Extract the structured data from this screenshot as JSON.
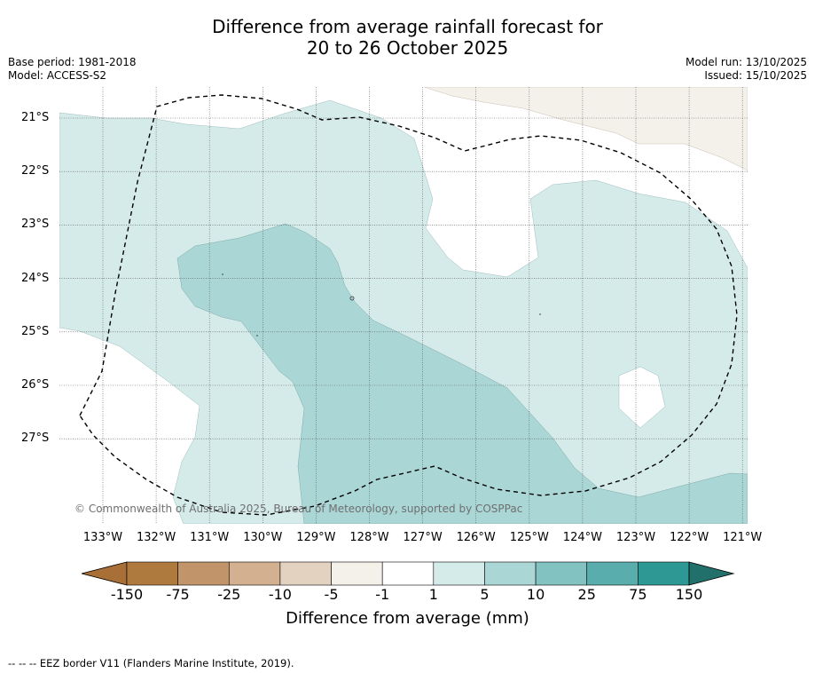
{
  "title_line1": "Difference from average rainfall forecast for",
  "title_line2": "20 to 26 October 2025",
  "base_period": "Base period: 1981-2018",
  "model": "Model: ACCESS-S2",
  "model_run": "Model run: 13/10/2025",
  "issued": "Issued: 15/10/2025",
  "lat_labels": [
    "21°S",
    "22°S",
    "23°S",
    "24°S",
    "25°S",
    "26°S",
    "27°S"
  ],
  "lon_labels": [
    "133°W",
    "132°W",
    "131°W",
    "130°W",
    "129°W",
    "128°W",
    "127°W",
    "126°W",
    "125°W",
    "124°W",
    "123°W",
    "122°W",
    "121°W"
  ],
  "copyright": "© Commonwealth of Australia 2025, Bureau of Meteorology, supported by COSPPac",
  "colorbar": {
    "label": "Difference from average (mm)",
    "ticks": [
      "-150",
      "-75",
      "-25",
      "-10",
      "-5",
      "-1",
      "1",
      "5",
      "10",
      "25",
      "75",
      "150"
    ],
    "colors": [
      "#a86f37",
      "#ae7a3e",
      "#c19469",
      "#d3b08f",
      "#e4d2c1",
      "#f4f1eb",
      "#ffffff",
      "#d5ebea",
      "#abd6d6",
      "#82c2c1",
      "#59adad",
      "#2e9894",
      "#21706c"
    ]
  },
  "legend_note": "--  --  -- EEZ border V11 (Flanders Marine Institute, 2019).",
  "icons": {
    "eez_border": "dashed-line-icon"
  }
}
